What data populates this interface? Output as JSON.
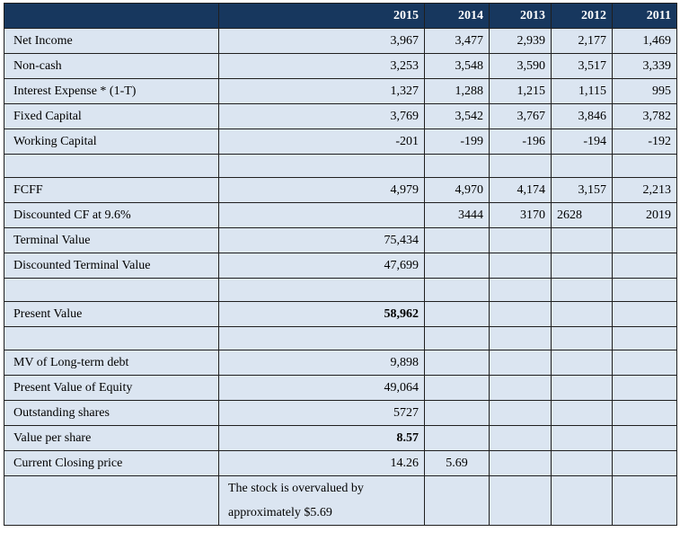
{
  "columns": [
    "",
    "2015",
    "2014",
    "2013",
    "2012",
    "2011"
  ],
  "rows": [
    {
      "label": "Net Income",
      "values": [
        "3,967",
        "3,477",
        "2,939",
        "2,177",
        "1,469"
      ]
    },
    {
      "label": "Non-cash",
      "values": [
        "3,253",
        "3,548",
        "3,590",
        "3,517",
        "3,339"
      ]
    },
    {
      "label": "Interest Expense * (1-T)",
      "values": [
        "1,327",
        "1,288",
        "1,215",
        "1,115",
        "995"
      ]
    },
    {
      "label": "Fixed Capital",
      "values": [
        "3,769",
        "3,542",
        "3,767",
        "3,846",
        "3,782"
      ]
    },
    {
      "label": "Working Capital",
      "values": [
        "-201",
        "-199",
        "-196",
        "-194",
        "-192"
      ]
    },
    {
      "label": "",
      "values": [
        "",
        "",
        "",
        "",
        ""
      ]
    },
    {
      "label": "FCFF",
      "values": [
        "4,979",
        "4,970",
        "4,174",
        "3,157",
        "2,213"
      ]
    },
    {
      "label": "Discounted CF at 9.6%",
      "values": [
        "",
        "3444",
        "3170",
        "2628",
        "2019"
      ]
    },
    {
      "label": "Terminal Value",
      "values": [
        "75,434",
        "",
        "",
        "",
        ""
      ]
    },
    {
      "label": "Discounted Terminal Value",
      "values": [
        "47,699",
        "",
        "",
        "",
        ""
      ]
    },
    {
      "label": "",
      "values": [
        "",
        "",
        "",
        "",
        ""
      ]
    },
    {
      "label": "Present Value",
      "values": [
        "58,962",
        "",
        "",
        "",
        ""
      ]
    },
    {
      "label": "",
      "values": [
        "",
        "",
        "",
        "",
        ""
      ]
    },
    {
      "label": "MV of Long-term debt",
      "values": [
        "9,898",
        "",
        "",
        "",
        ""
      ]
    },
    {
      "label": "Present Value of Equity",
      "values": [
        "49,064",
        "",
        "",
        "",
        ""
      ]
    },
    {
      "label": "Outstanding shares",
      "values": [
        "5727",
        "",
        "",
        "",
        ""
      ]
    },
    {
      "label": "Value per share",
      "values": [
        "8.57",
        "",
        "",
        "",
        ""
      ]
    },
    {
      "label": "Current Closing price",
      "values": [
        "14.26",
        "5.69",
        "",
        "",
        ""
      ]
    }
  ],
  "note": {
    "line1": "The stock is overvalued by",
    "line2": "approximately $5.69"
  }
}
